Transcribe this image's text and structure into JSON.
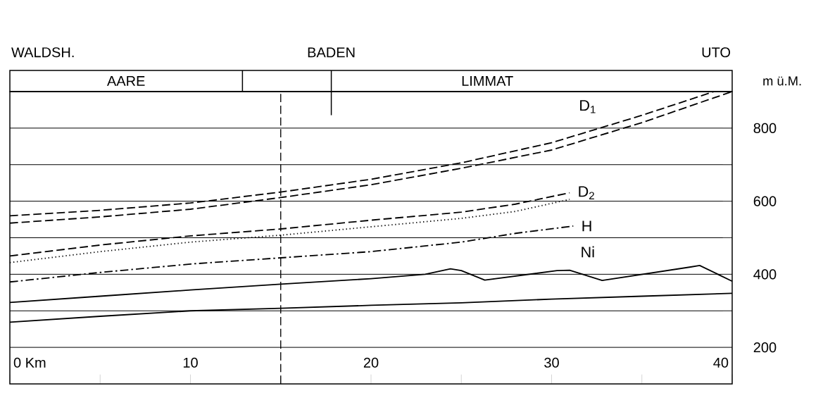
{
  "chart_data": {
    "type": "line",
    "ylabel": "m ü.M.",
    "xlim": [
      0,
      40
    ],
    "ylim": [
      100,
      900
    ],
    "xticks": [
      {
        "value": 0,
        "label": "0 Km"
      },
      {
        "value": 5,
        "label": null
      },
      10,
      {
        "value": 15,
        "label": null
      },
      20,
      {
        "value": 25,
        "label": null
      },
      30,
      {
        "value": 35,
        "label": null
      },
      40
    ],
    "yticks": [
      200,
      {
        "value": 300,
        "label": null
      },
      400,
      {
        "value": 500,
        "label": null
      },
      600,
      {
        "value": 700,
        "label": null
      },
      800,
      {
        "value": 900,
        "label": null
      }
    ],
    "grid": "y",
    "series": [
      {
        "name": "D$_{1}$",
        "color": "#000000",
        "line_style": "dashed",
        "x": [
          0,
          5,
          10,
          15,
          20,
          25,
          30,
          35,
          39
        ],
        "values": [
          560,
          575,
          595,
          625,
          660,
          705,
          760,
          835,
          900
        ]
      },
      {
        "color": "#000000",
        "line_style": "dashed",
        "x": [
          0,
          5,
          10,
          15,
          20,
          25,
          30,
          35,
          40
        ],
        "values": [
          540,
          557,
          578,
          610,
          645,
          690,
          740,
          815,
          900
        ]
      },
      {
        "name": "D$_{2}$",
        "color": "#000000",
        "line_style": "dashed",
        "x": [
          0,
          5,
          10,
          15,
          20,
          25,
          28,
          31
        ],
        "values": [
          450,
          480,
          505,
          524,
          548,
          570,
          592,
          623
        ]
      },
      {
        "color": "#000000",
        "line_style": "dotted",
        "x": [
          0,
          5,
          10,
          15,
          20,
          25,
          28,
          31
        ],
        "values": [
          432,
          462,
          488,
          507,
          530,
          553,
          572,
          605
        ]
      },
      {
        "name": "H",
        "color": "#000000",
        "line_style": "dashdot",
        "x": [
          0,
          5,
          10,
          15,
          20,
          25,
          28,
          31.2
        ],
        "values": [
          379,
          405,
          428,
          445,
          462,
          488,
          512,
          532
        ]
      },
      {
        "name": "Ni",
        "color": "#000000",
        "line_style": "solid",
        "x": [
          0,
          5,
          10,
          15,
          20,
          23,
          24.4,
          25,
          26.3,
          30.3,
          31,
          32.8,
          37.7,
          38.2,
          40
        ],
        "values": [
          323,
          340,
          357,
          373,
          388,
          400,
          415,
          410,
          384,
          410,
          411,
          383,
          420,
          424,
          381
        ]
      },
      {
        "color": "#000000",
        "line_style": "solid",
        "x": [
          0,
          5,
          10,
          15,
          20,
          25,
          30,
          35,
          40
        ],
        "values": [
          269,
          285,
          300,
          307,
          315,
          322,
          332,
          340,
          348
        ]
      }
    ],
    "ref_lines": [
      {
        "axis": "x",
        "value": 15,
        "line_style": "dashed"
      }
    ],
    "annotations": [
      "WALDSH.",
      "BADEN",
      "UTO",
      "AARE",
      "LIMMAT"
    ]
  }
}
